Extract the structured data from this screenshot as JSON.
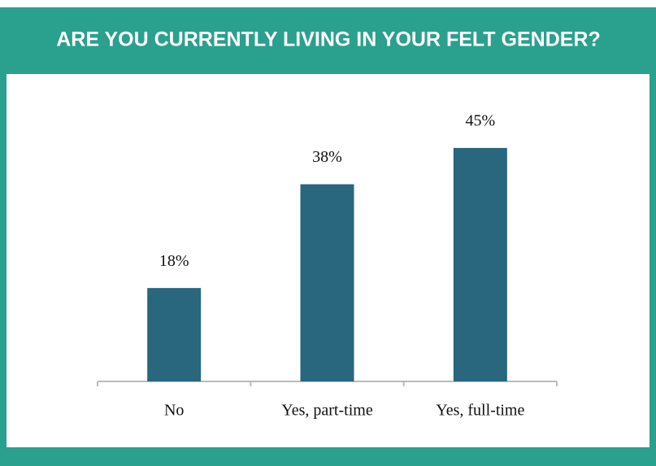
{
  "chart_data": {
    "type": "bar",
    "title": "ARE YOU CURRENTLY LIVING IN YOUR FELT GENDER?",
    "categories": [
      "No",
      "Yes, part-time",
      "Yes, full-time"
    ],
    "values": [
      18,
      38,
      45
    ],
    "value_labels": [
      "18%",
      "38%",
      "45%"
    ],
    "color": "#28677e"
  }
}
